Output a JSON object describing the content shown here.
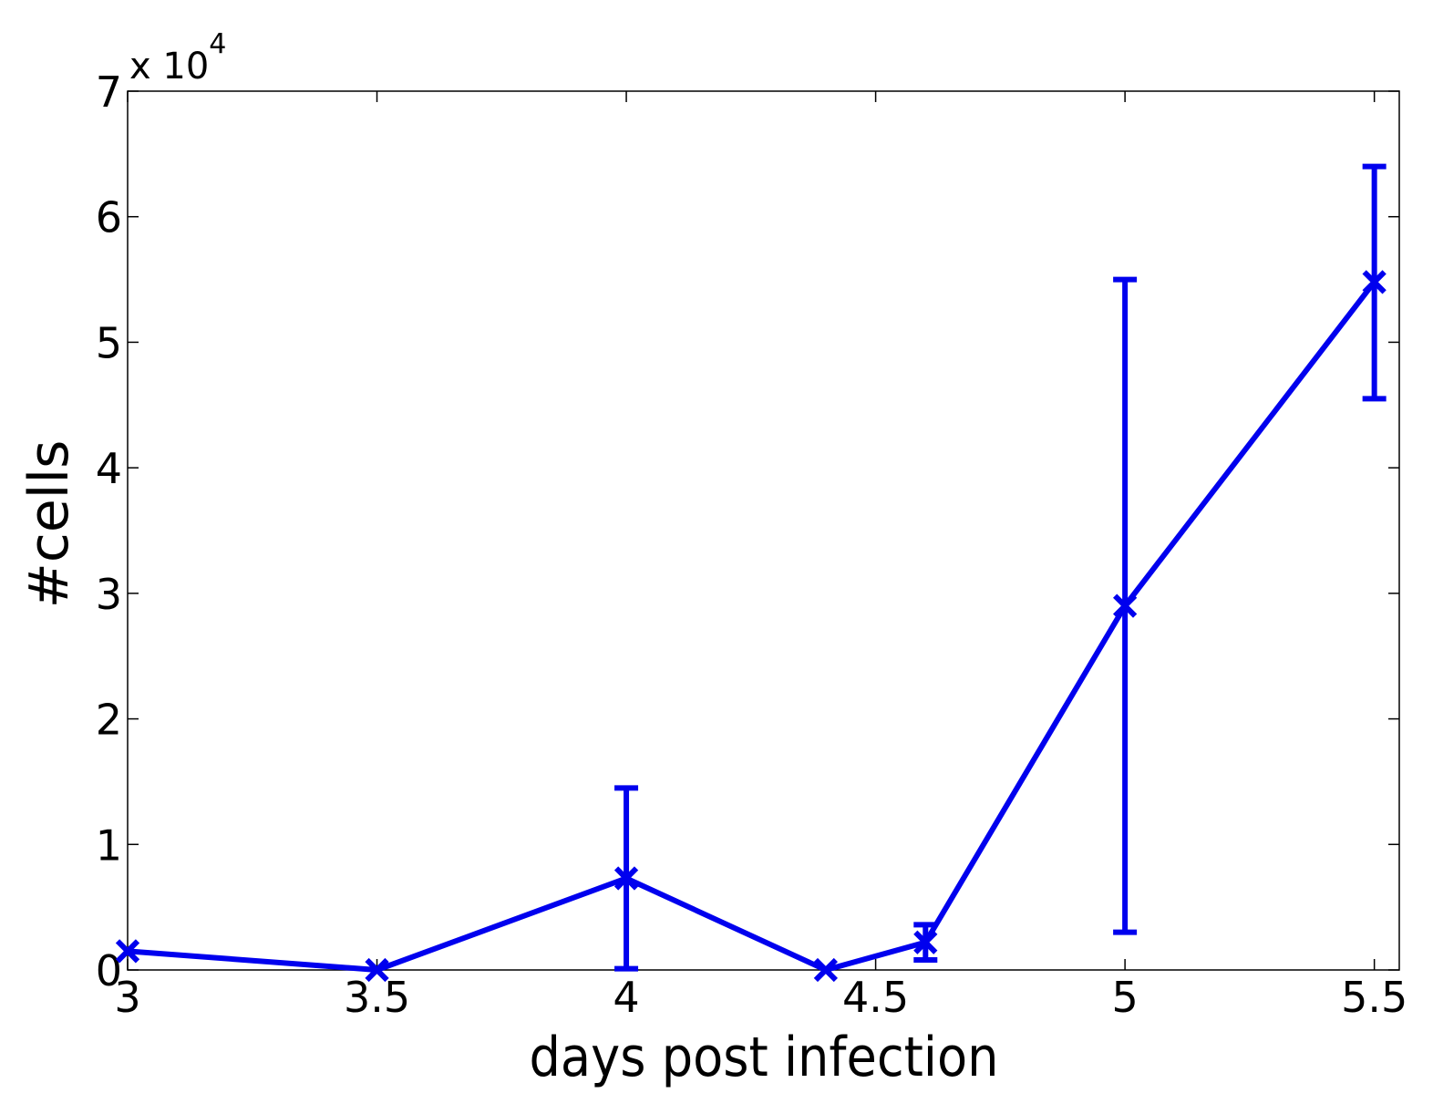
{
  "chart_data": {
    "type": "line",
    "xlabel": "days post infection",
    "ylabel": "#cells",
    "y_multiplier_base": "x 10",
    "y_multiplier_exponent": "4",
    "xlim": [
      3,
      5.55
    ],
    "ylim": [
      0,
      7
    ],
    "xticks": [
      3,
      3.5,
      4,
      4.5,
      5,
      5.5
    ],
    "xtick_labels": [
      "3",
      "3.5",
      "4",
      "4.5",
      "5",
      "5.5"
    ],
    "yticks": [
      0,
      1,
      2,
      3,
      4,
      5,
      6,
      7
    ],
    "ytick_labels": [
      "0",
      "1",
      "2",
      "3",
      "4",
      "5",
      "6",
      "7"
    ],
    "grid": false,
    "color": "#0000ee",
    "marker": "x",
    "series": [
      {
        "x": [
          3,
          3.5,
          4,
          4.4,
          4.6,
          5,
          5.5
        ],
        "y": [
          0.15,
          0.0,
          0.73,
          0.0,
          0.22,
          2.9,
          5.48
        ],
        "err_low": [
          null,
          null,
          0.01,
          null,
          0.08,
          0.3,
          4.55
        ],
        "err_high": [
          null,
          null,
          1.45,
          null,
          0.36,
          5.5,
          6.4
        ]
      }
    ]
  }
}
